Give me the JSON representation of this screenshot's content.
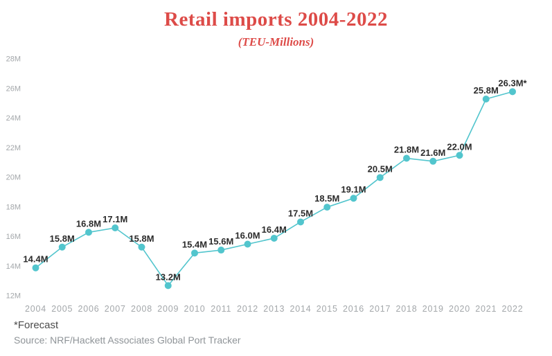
{
  "header": {
    "title": "Retail imports 2004-2022",
    "subtitle": "(TEU-Millions)"
  },
  "chart_data": {
    "type": "line",
    "title": "Retail imports 2004-2022",
    "subtitle": "(TEU-Millions)",
    "unit": "TEU-Millions",
    "x": [
      "2004",
      "2005",
      "2006",
      "2007",
      "2008",
      "2009",
      "2010",
      "2011",
      "2012",
      "2013",
      "2014",
      "2015",
      "2016",
      "2017",
      "2018",
      "2019",
      "2020",
      "2021",
      "2022"
    ],
    "values": [
      14.4,
      15.8,
      16.8,
      17.1,
      15.8,
      13.2,
      15.4,
      15.6,
      16.0,
      16.4,
      17.5,
      18.5,
      19.1,
      20.5,
      21.8,
      21.6,
      22.0,
      25.8,
      26.3
    ],
    "point_labels": [
      "14.4M",
      "15.8M",
      "16.8M",
      "17.1M",
      "15.8M",
      "13.2M",
      "15.4M",
      "15.6M",
      "16.0M",
      "16.4M",
      "17.5M",
      "18.5M",
      "19.1M",
      "20.5M",
      "21.8M",
      "21.6M",
      "22.0M",
      "25.8M",
      "26.3M*"
    ],
    "ylim": [
      12,
      28
    ],
    "ytick_values": [
      28,
      26,
      24,
      22,
      20,
      18,
      16,
      14,
      12
    ],
    "ytick_labels": [
      "28M",
      "26M",
      "24M",
      "22M",
      "20M",
      "18M",
      "16M",
      "14M",
      "12M"
    ],
    "grid": false,
    "legend": "none",
    "forecast_year": "2022",
    "colors": {
      "title": "#dd4b48",
      "line": "#52c5cd",
      "point": "#52c5cd",
      "point_label": "#2b2b2b",
      "axis_label": "#a3a7aa"
    }
  },
  "footer": {
    "forecast_note": "*Forecast",
    "source": "Source: NRF/Hackett Associates Global Port Tracker"
  }
}
